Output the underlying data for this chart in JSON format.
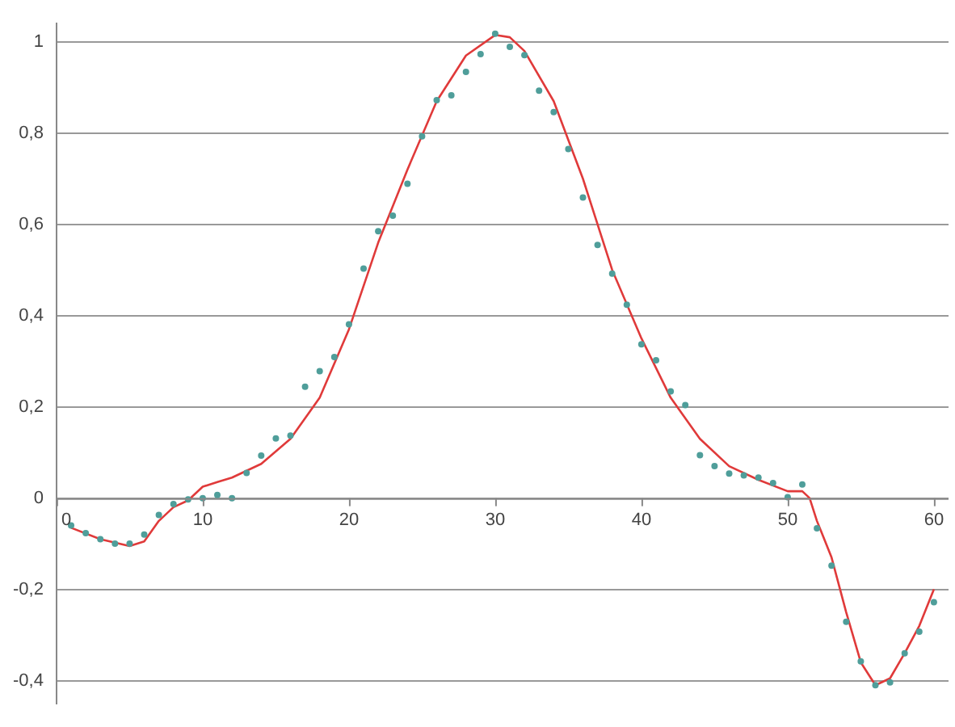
{
  "chart_data": {
    "type": "scatter",
    "xlim": [
      0,
      61
    ],
    "xticks": [
      0,
      10,
      20,
      30,
      40,
      50,
      60
    ],
    "ylim": [
      -0.45,
      1.04
    ],
    "yticks": [
      {
        "value": -0.4,
        "label": "-0,4"
      },
      {
        "value": -0.2,
        "label": "-0,2"
      },
      {
        "value": 0,
        "label": "0"
      },
      {
        "value": 0.2,
        "label": "0,2"
      },
      {
        "value": 0.4,
        "label": "0,4"
      },
      {
        "value": 0.6,
        "label": "0,6"
      },
      {
        "value": 0.8,
        "label": "0,8"
      },
      {
        "value": 1,
        "label": "1"
      }
    ],
    "grid": "y",
    "legend": false,
    "marker": "circle",
    "series": [
      {
        "color": "#4f9e9a",
        "x": [
          1,
          2,
          3,
          4,
          5,
          6,
          7,
          8,
          9,
          10,
          11,
          12,
          13,
          14,
          15,
          16,
          17,
          18,
          19,
          20,
          21,
          22,
          23,
          24,
          25,
          26,
          27,
          28,
          29,
          30,
          31,
          32,
          33,
          34,
          35,
          36,
          37,
          38,
          39,
          40,
          41,
          42,
          43,
          44,
          45,
          46,
          47,
          48,
          49,
          50,
          51,
          52,
          53,
          54,
          55,
          56,
          57,
          58,
          59,
          60
        ],
        "values": [
          -0.06,
          -0.077,
          -0.09,
          -0.1,
          -0.1,
          -0.08,
          -0.037,
          -0.013,
          -0.003,
          0,
          0.007,
          0,
          0.055,
          0.093,
          0.131,
          0.137,
          0.244,
          0.278,
          0.309,
          0.381,
          0.503,
          0.585,
          0.619,
          0.689,
          0.793,
          0.872,
          0.883,
          0.934,
          0.973,
          1.018,
          0.989,
          0.971,
          0.893,
          0.846,
          0.765,
          0.659,
          0.555,
          0.492,
          0.424,
          0.337,
          0.302,
          0.234,
          0.204,
          0.094,
          0.07,
          0.054,
          0.05,
          0.045,
          0.033,
          0.002,
          0.03,
          -0.066,
          -0.148,
          -0.271,
          -0.358,
          -0.41,
          -0.404,
          -0.34,
          -0.293,
          -0.228
        ]
      },
      {
        "type": "line",
        "color": "#e03a3a",
        "marker": "none",
        "x": [
          1,
          3,
          5,
          6,
          7,
          8,
          9,
          10,
          11,
          12,
          14,
          16,
          18,
          20,
          22,
          24,
          26,
          28,
          30,
          31,
          32,
          34,
          36,
          38,
          40,
          42,
          44,
          46,
          48,
          50,
          51,
          51.5,
          52,
          53,
          54,
          55,
          56,
          57,
          58,
          59,
          60
        ],
        "values": [
          -0.065,
          -0.09,
          -0.105,
          -0.095,
          -0.05,
          -0.02,
          -0.005,
          0.025,
          0.035,
          0.045,
          0.075,
          0.13,
          0.22,
          0.37,
          0.56,
          0.72,
          0.87,
          0.97,
          1.015,
          1.01,
          0.98,
          0.87,
          0.7,
          0.5,
          0.35,
          0.22,
          0.13,
          0.07,
          0.04,
          0.015,
          0.015,
          0,
          -0.05,
          -0.13,
          -0.25,
          -0.36,
          -0.41,
          -0.395,
          -0.34,
          -0.28,
          -0.2
        ]
      }
    ]
  }
}
